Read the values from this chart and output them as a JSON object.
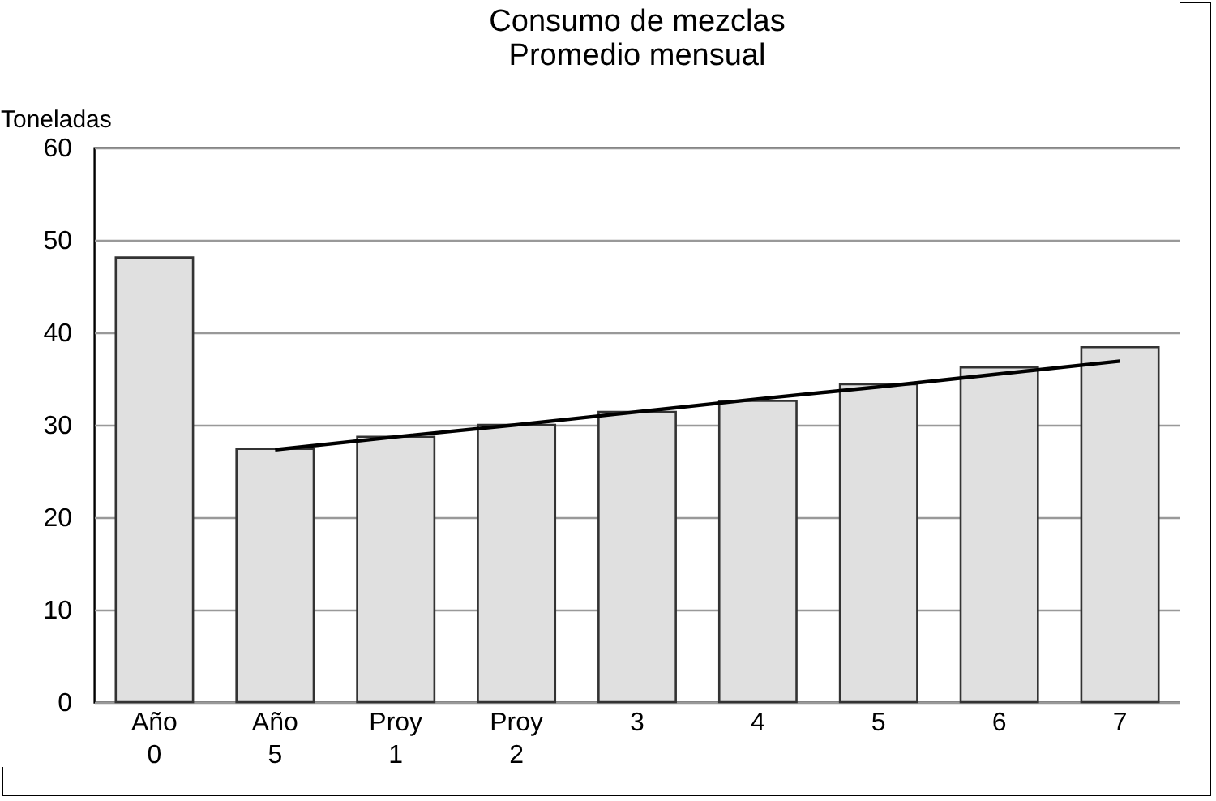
{
  "chart_data": {
    "type": "bar",
    "title": "Consumo de mezclas",
    "subtitle": "Promedio mensual",
    "ylabel": "Toneladas",
    "categories": [
      "Año 0",
      "Año 5",
      "Proy 1",
      "Proy 2",
      "3",
      "4",
      "5",
      "6",
      "7"
    ],
    "series": [
      {
        "color": "#e0e0e0",
        "values": [
          48.1,
          27.4,
          28.7,
          30.0,
          31.4,
          32.6,
          34.4,
          36.2,
          38.4
        ]
      },
      {
        "type": "line",
        "color": "#000000",
        "values": [
          null,
          27.3,
          28.7,
          30.0,
          31.4,
          32.8,
          34.1,
          35.5,
          36.9
        ]
      }
    ],
    "ylim": [
      0,
      60
    ],
    "yticks": [
      0,
      10,
      20,
      30,
      40,
      50,
      60
    ],
    "grid": "y",
    "marker": "none",
    "line_style": "solid"
  }
}
